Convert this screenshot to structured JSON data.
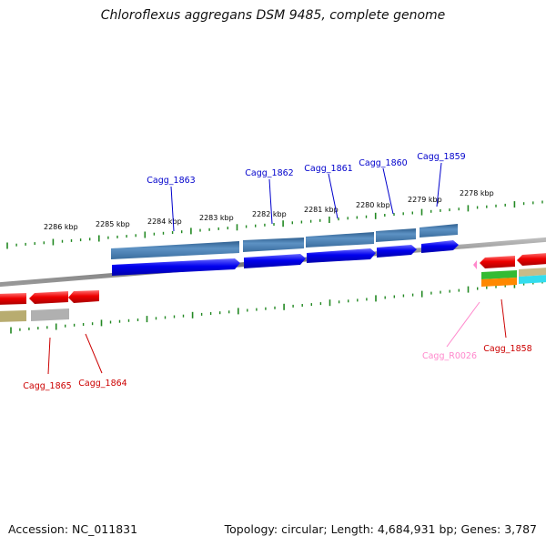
{
  "title": "Chloroflexus aggregans DSM 9485, complete genome",
  "footer": {
    "accession": "Accession: NC_011831",
    "topology": "Topology: circular; Length: 4,684,931 bp; Genes: 3,787"
  },
  "scale_labels": [
    "2286 kbp",
    "2285 kbp",
    "2284 kbp",
    "2283 kbp",
    "2282 kbp",
    "2281 kbp",
    "2280 kbp",
    "2279 kbp",
    "2278 kbp"
  ],
  "gene_labels": [
    "Cagg_1863",
    "Cagg_1862",
    "Cagg_1861",
    "Cagg_1860",
    "Cagg_1859",
    "Cagg_1865",
    "Cagg_1864",
    "Cagg_R0026",
    "Cagg_1858"
  ],
  "colors": {
    "forward_gene": "#0000ee",
    "forward_cds_feature": "#4a7fb0",
    "reverse_gene": "#ee0000",
    "rna_gene": "#ff88cc",
    "backbone": "#888888",
    "ticks": "#228822"
  }
}
